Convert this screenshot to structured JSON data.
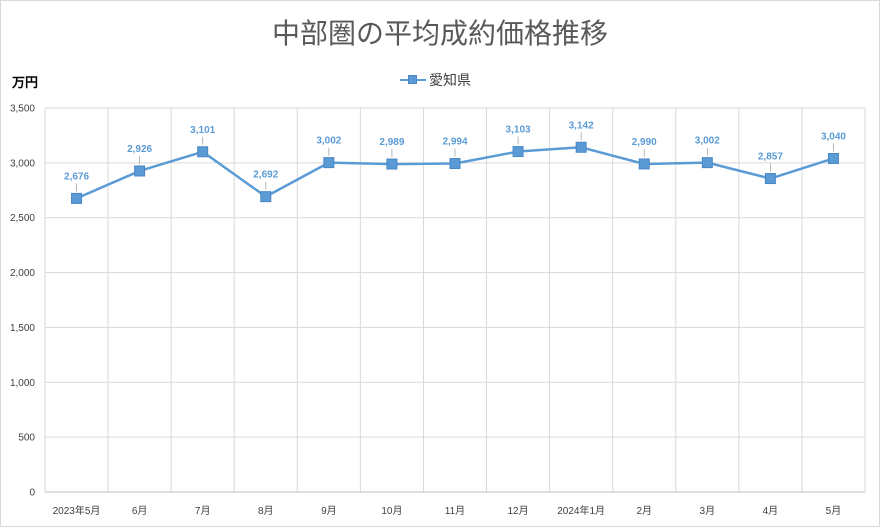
{
  "chart_data": {
    "type": "line",
    "title": "中部圏の平均成約価格推移",
    "ylabel": "万円",
    "xlabel": "",
    "categories": [
      "2023年5月",
      "6月",
      "7月",
      "8月",
      "9月",
      "10月",
      "11月",
      "12月",
      "2024年1月",
      "2月",
      "3月",
      "4月",
      "5月"
    ],
    "series": [
      {
        "name": "愛知県",
        "values": [
          2676,
          2926,
          3101,
          2692,
          3002,
          2989,
          2994,
          3103,
          3142,
          2990,
          3002,
          2857,
          3040
        ],
        "labels": [
          "2,676",
          "2,926",
          "3,101",
          "2,692",
          "3,002",
          "2,989",
          "2,994",
          "3,103",
          "3,142",
          "2,990",
          "3,002",
          "2,857",
          "3,040"
        ],
        "color": "#5b9bd5",
        "marker": "square"
      }
    ],
    "ylim": [
      0,
      3500
    ],
    "yticks": [
      0,
      500,
      1000,
      1500,
      2000,
      2500,
      3000,
      3500
    ],
    "ytick_labels": [
      "0",
      "500",
      "1,000",
      "1,500",
      "2,000",
      "2,500",
      "3,000",
      "3,500"
    ],
    "grid": true,
    "legend_position": "top-center"
  }
}
